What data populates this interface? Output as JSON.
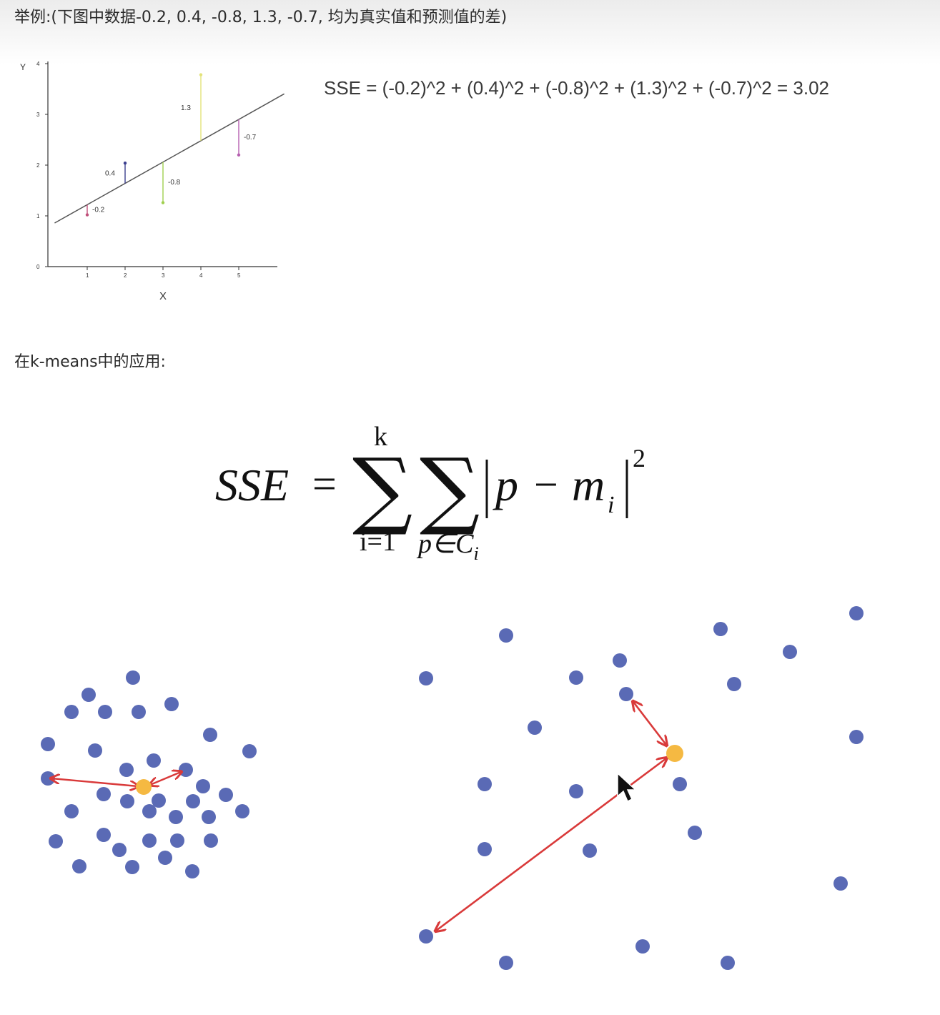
{
  "intro_text": "举例:(下图中数据-0.2, 0.4, -0.8, 1.3, -0.7, 均为真实值和预测值的差)",
  "regression_chart": {
    "y_axis_label": "Y",
    "x_axis_label": "X",
    "y_ticks": [
      "0",
      "1",
      "2",
      "3",
      "4"
    ],
    "x_ticks": [
      "1",
      "2",
      "3",
      "4",
      "5"
    ],
    "regression_line": {
      "intercept": 0.8,
      "slope": 0.42
    },
    "residuals": [
      {
        "x": 1,
        "label": "-0.2",
        "value": -0.2,
        "color": "#c0507a"
      },
      {
        "x": 2,
        "label": "0.4",
        "value": 0.4,
        "color": "#3b3f8f"
      },
      {
        "x": 3,
        "label": "-0.8",
        "value": -0.8,
        "color": "#9fcf4e"
      },
      {
        "x": 4,
        "label": "1.3",
        "value": 1.3,
        "color": "#e3e37a"
      },
      {
        "x": 5,
        "label": "-0.7",
        "value": -0.7,
        "color": "#b65fb0"
      }
    ]
  },
  "sse_example": "SSE = (-0.2)^2 + (0.4)^2 + (-0.8)^2 + (1.3)^2 + (-0.7)^2 = 3.02",
  "kmeans_heading": "在k-means中的应用:",
  "formula": {
    "lhs": "SSE",
    "equals": "=",
    "sum1_upper": "k",
    "sum1_lower": "i=1",
    "sum_symbol": "∑",
    "sum2_lower_p": "p∈C",
    "sum2_lower_sub": "i",
    "term_p": "p",
    "minus": "−",
    "term_m": "m",
    "term_sub": "i",
    "exponent": "2"
  },
  "colors": {
    "point": "#5a6ab5",
    "centroid": "#f5b942",
    "arrow": "#d93a3a",
    "line": "#555555"
  }
}
